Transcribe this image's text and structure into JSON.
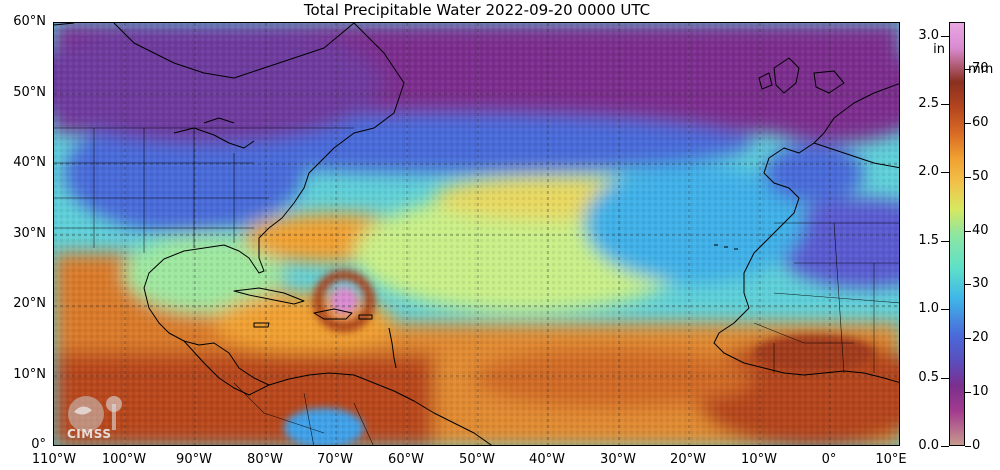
{
  "title": "Total Precipitable Water  2022-09-20 0000 UTC",
  "map": {
    "lat_labels": [
      "60°N",
      "50°N",
      "40°N",
      "30°N",
      "20°N",
      "10°N",
      "0°"
    ],
    "lon_labels": [
      "110°W",
      "100°W",
      "90°W",
      "80°W",
      "70°W",
      "60°W",
      "50°W",
      "40°W",
      "30°W",
      "20°W",
      "10°W",
      "0°",
      "10°E"
    ],
    "extent": {
      "lon_min": -110,
      "lon_max": 10,
      "lat_min": 0,
      "lat_max": 60
    },
    "colors": {
      "very_dry": "#7b2f8e",
      "dry": "#4a6ad9",
      "moderate": "#3fb8e8",
      "humid": "#8fe6a0",
      "wet": "#f0a030",
      "very_wet": "#b4451f",
      "extreme": "#d88ad0"
    }
  },
  "colorbar": {
    "inch_unit": "in",
    "mm_unit": "mm",
    "inch_labels": [
      "0.0",
      "0.5",
      "1.0",
      "1.5",
      "2.0",
      "2.5",
      "3.0"
    ],
    "mm_labels": [
      "0",
      "10",
      "20",
      "30",
      "40",
      "50",
      "60",
      "70"
    ],
    "inch_range": [
      0.0,
      3.1
    ],
    "mm_range": [
      0,
      78.74
    ]
  },
  "logo": {
    "text": "CIMSS"
  }
}
